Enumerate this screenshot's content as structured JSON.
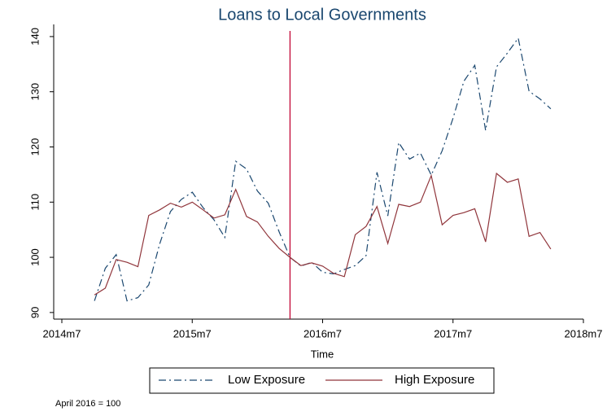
{
  "chart_data": {
    "type": "line",
    "title": "Loans to Local Governments",
    "x_label": "Time",
    "note": "April 2016 = 100",
    "x": [
      "2014m10",
      "2014m11",
      "2014m12",
      "2015m1",
      "2015m2",
      "2015m3",
      "2015m4",
      "2015m5",
      "2015m6",
      "2015m7",
      "2015m8",
      "2015m9",
      "2015m10",
      "2015m11",
      "2015m12",
      "2016m1",
      "2016m2",
      "2016m3",
      "2016m4",
      "2016m5",
      "2016m6",
      "2016m7",
      "2016m8",
      "2016m9",
      "2016m10",
      "2016m11",
      "2016m12",
      "2017m1",
      "2017m2",
      "2017m3",
      "2017m4",
      "2017m5",
      "2017m6",
      "2017m7",
      "2017m8",
      "2017m9",
      "2017m10",
      "2017m11",
      "2017m12",
      "2018m1",
      "2018m2",
      "2018m3",
      "2018m4"
    ],
    "series": [
      {
        "name": "Low Exposure",
        "color": "#1a476f",
        "dash": "9 4 2 4",
        "values": [
          92.1,
          98,
          100.5,
          92.1,
          92.7,
          95,
          102.4,
          108.3,
          110.5,
          111.8,
          109,
          106.8,
          103.6,
          117.4,
          116,
          112,
          109.8,
          104.6,
          100,
          98.4,
          99.1,
          97.3,
          97,
          97.8,
          98.5,
          100.3,
          115.4,
          107.5,
          120.8,
          117.8,
          118.9,
          114.9,
          119.3,
          125.2,
          131.9,
          134.8,
          123,
          134.5,
          137,
          139.7,
          130.1,
          128.7,
          126.9
        ]
      },
      {
        "name": "High Exposure",
        "color": "#90353b",
        "dash": "none",
        "values": [
          93.2,
          94.4,
          99.6,
          99.1,
          98.3,
          107.6,
          108.6,
          109.8,
          109.1,
          110,
          108.6,
          107.1,
          107.7,
          112.3,
          107.4,
          106.4,
          103.8,
          101.6,
          100,
          98.5,
          99,
          98.4,
          97.1,
          96.5,
          104.1,
          105.6,
          109.2,
          102.5,
          109.6,
          109.2,
          110,
          114.8,
          105.9,
          107.6,
          108.1,
          108.8,
          102.8,
          115.2,
          113.6,
          114.2,
          103.8,
          104.5,
          101.5
        ]
      }
    ],
    "xlim": [
      "2014m7",
      "2018m7"
    ],
    "xticks": [
      "2014m7",
      "2015m7",
      "2016m7",
      "2017m7",
      "2018m7"
    ],
    "ylim": [
      88.8,
      142.2
    ],
    "yticks": [
      90,
      100,
      110,
      120,
      130,
      140
    ],
    "vline": "2016m4",
    "vline_color": "#c10534"
  }
}
